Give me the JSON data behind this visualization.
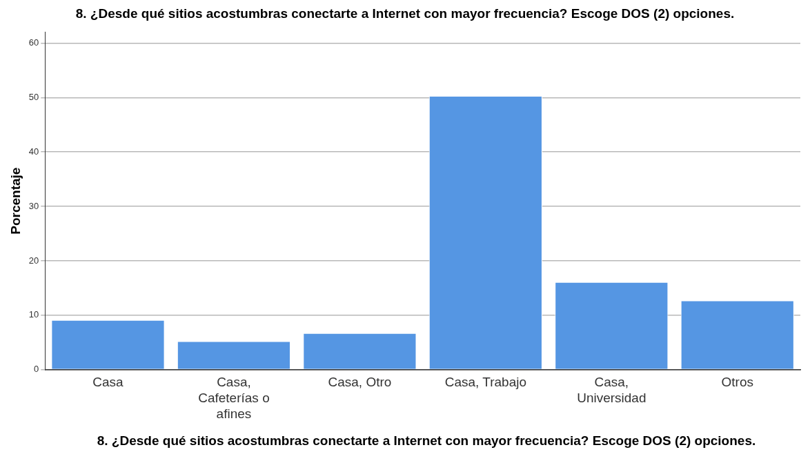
{
  "chart_data": {
    "type": "bar",
    "title": "8. ¿Desde qué sitios acostumbras conectarte a Internet con mayor frecuencia? Escoge DOS (2) opciones.",
    "xlabel": "8. ¿Desde qué sitios acostumbras conectarte a Internet con mayor frecuencia? Escoge DOS (2) opciones.",
    "ylabel": "Porcentaje",
    "categories": [
      "Casa",
      "Casa, Cafeterías o afines",
      "Casa, Otro",
      "Casa, Trabajo",
      "Casa, Universidad",
      "Otros"
    ],
    "values": [
      9.1,
      5.2,
      6.7,
      50.3,
      16.1,
      12.7
    ],
    "color": "#5596e3",
    "ylim": [
      0,
      62
    ],
    "yticks": [
      0,
      10,
      20,
      30,
      40,
      50,
      60
    ],
    "grid": "y",
    "legend": false
  }
}
